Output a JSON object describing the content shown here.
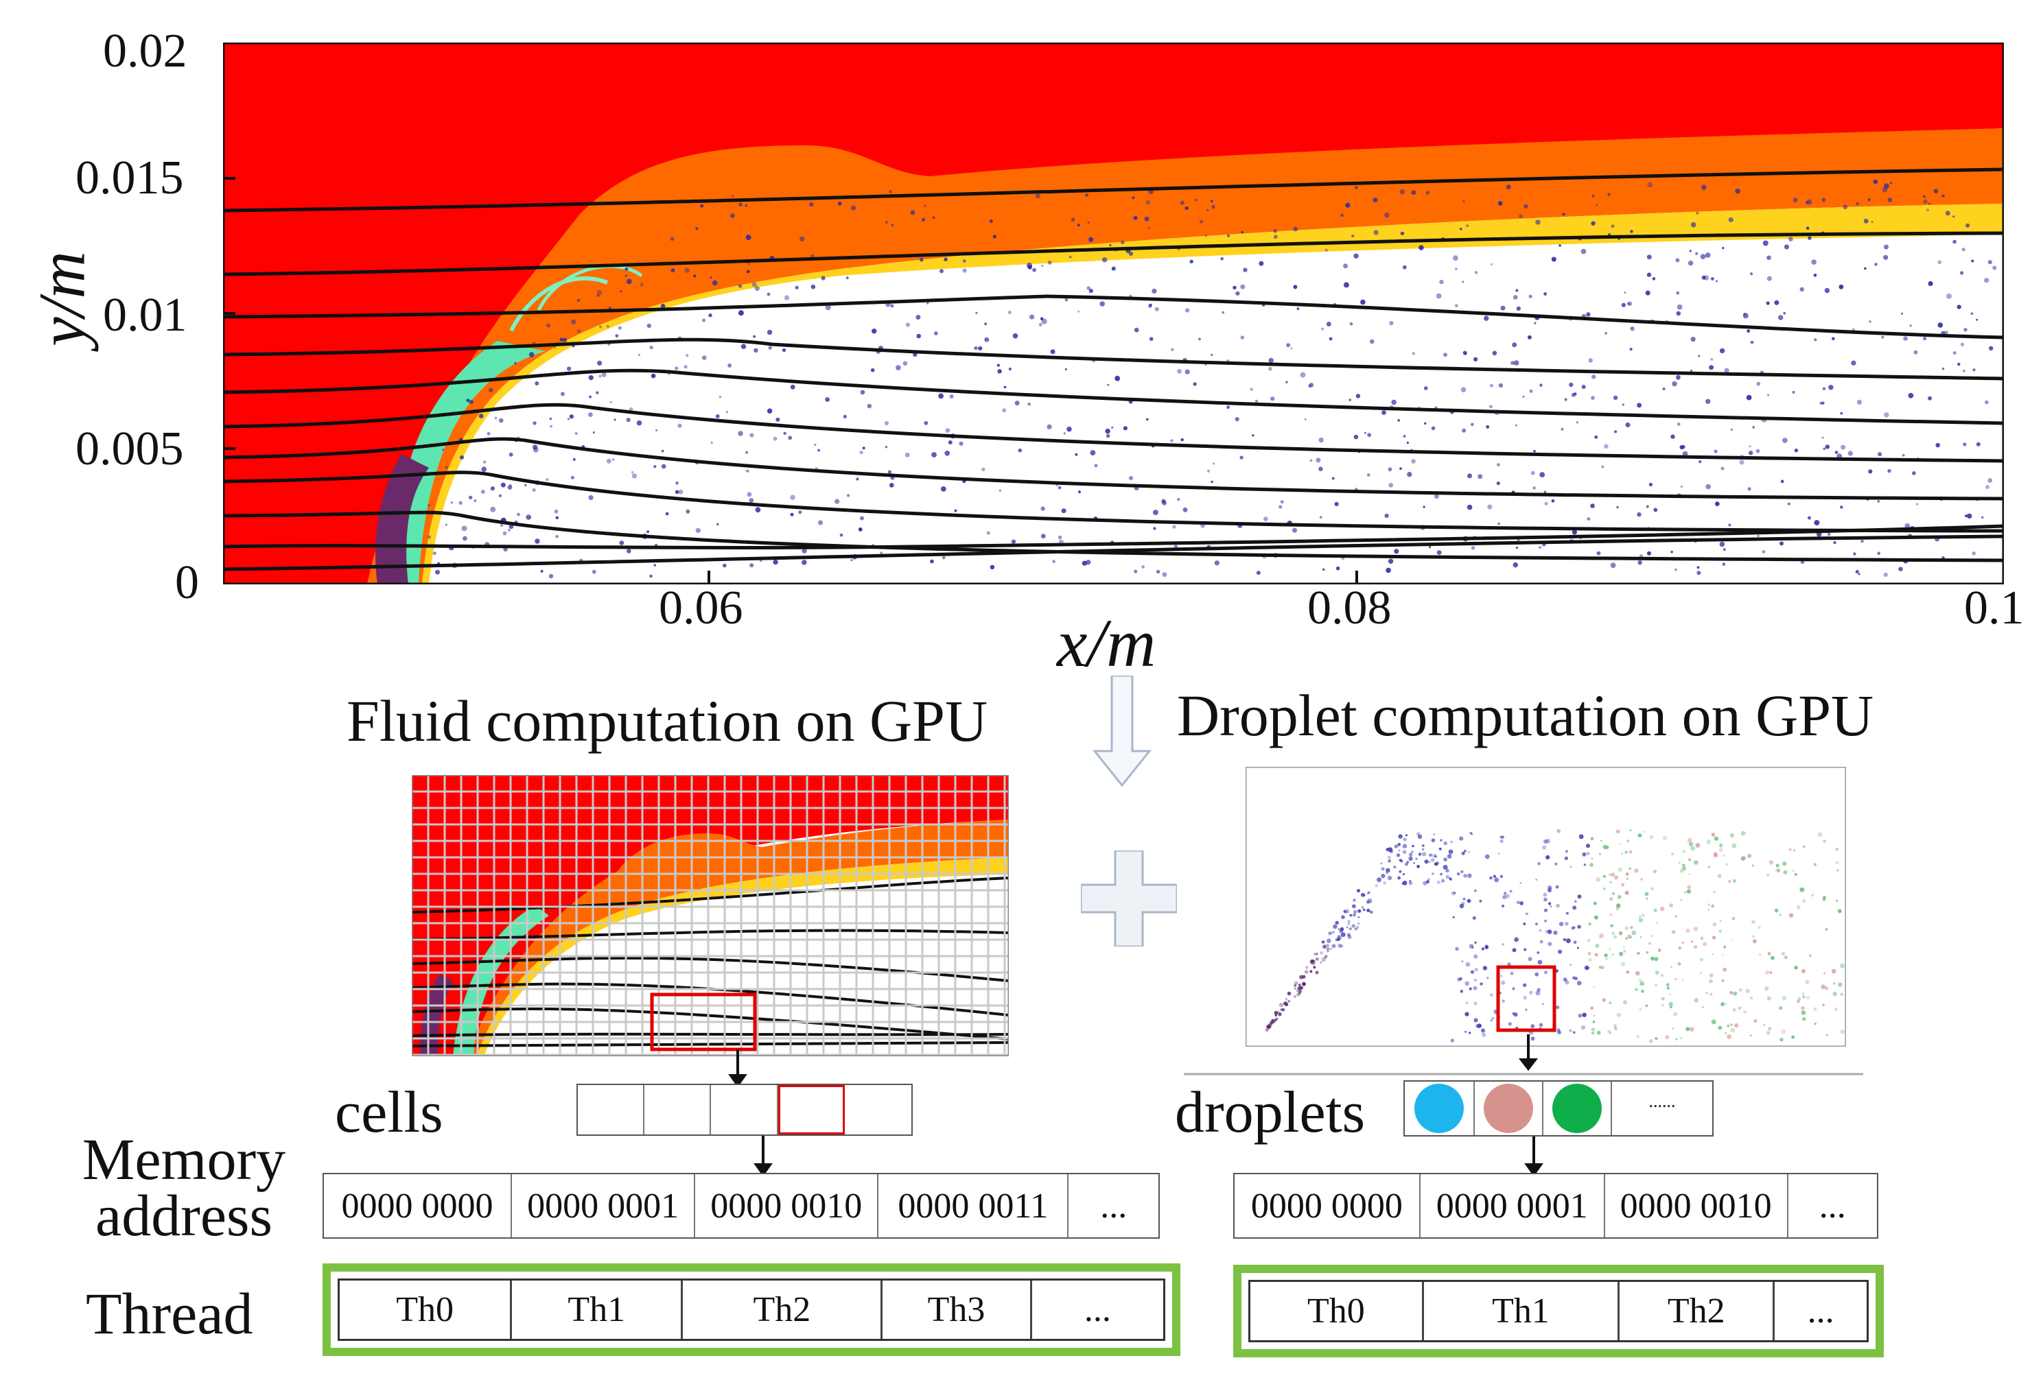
{
  "top_plot": {
    "ylabel": "y/m",
    "xlabel": "x/m",
    "y_ticks": [
      "0.02",
      "0.015",
      "0.01",
      "0.005",
      "0"
    ],
    "x_ticks": [
      "0.06",
      "0.08",
      "0.1"
    ],
    "colors": {
      "red": "#ff0000",
      "orange": "#ff6a00",
      "yellow": "#ffff00",
      "green": "#5ee6b0",
      "purple": "#6a2a6a",
      "droplet": "#2a2aa0"
    }
  },
  "fluid": {
    "title": "Fluid computation on GPU",
    "cells_label": "cells",
    "memory_label_line1": "Memory",
    "memory_label_line2": "address",
    "thread_label": "Thread",
    "memory": [
      "0000 0000",
      "0000 0001",
      "0000 0010",
      "0000 0011",
      "..."
    ],
    "threads": [
      "Th0",
      "Th1",
      "Th2",
      "Th3",
      "..."
    ]
  },
  "droplet": {
    "title": "Droplet computation on GPU",
    "droplets_label": "droplets",
    "droplet_colors": [
      "#1eb4ee",
      "#d6938e",
      "#0fae4a"
    ],
    "droplet_more": "......",
    "memory": [
      "0000 0000",
      "0000 0001",
      "0000 0010",
      "..."
    ],
    "threads": [
      "Th0",
      "Th1",
      "Th2",
      "..."
    ]
  }
}
